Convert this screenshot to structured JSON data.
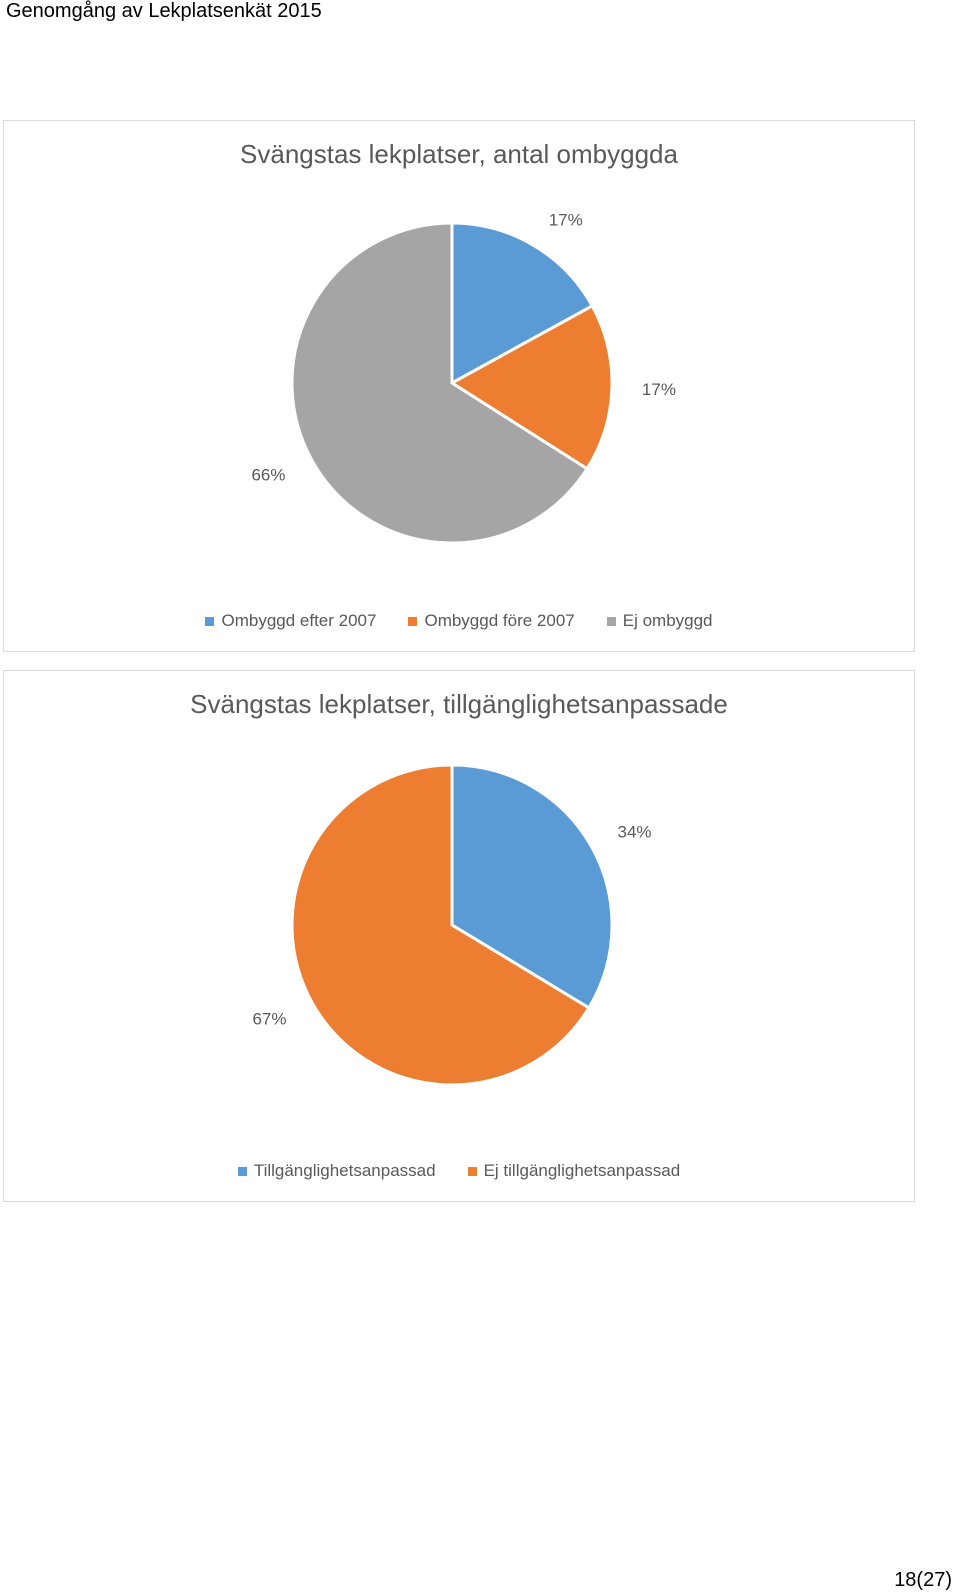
{
  "header": {
    "title": "Genomgång av Lekplatsenkät 2015"
  },
  "footer": {
    "page": "18(27)"
  },
  "chart_data": [
    {
      "type": "pie",
      "title": "Svängstas lekplatser, antal ombyggda",
      "categories": [
        "Ombyggd efter 2007",
        "Ombyggd före 2007",
        "Ej ombyggd"
      ],
      "values": [
        17,
        17,
        66
      ],
      "labels": [
        "17%",
        "17%",
        "66%"
      ],
      "colors": [
        "#5b9bd5",
        "#ed7d31",
        "#a5a5a5"
      ],
      "legend_position": "bottom"
    },
    {
      "type": "pie",
      "title": "Svängstas lekplatser, tillgänglighetsanpassade",
      "categories": [
        "Tillgänglighetsanpassad",
        "Ej tillgänglighetsanpassad"
      ],
      "values": [
        34,
        67
      ],
      "labels": [
        "34%",
        "67%"
      ],
      "colors": [
        "#5b9bd5",
        "#ed7d31"
      ],
      "legend_position": "bottom"
    }
  ]
}
